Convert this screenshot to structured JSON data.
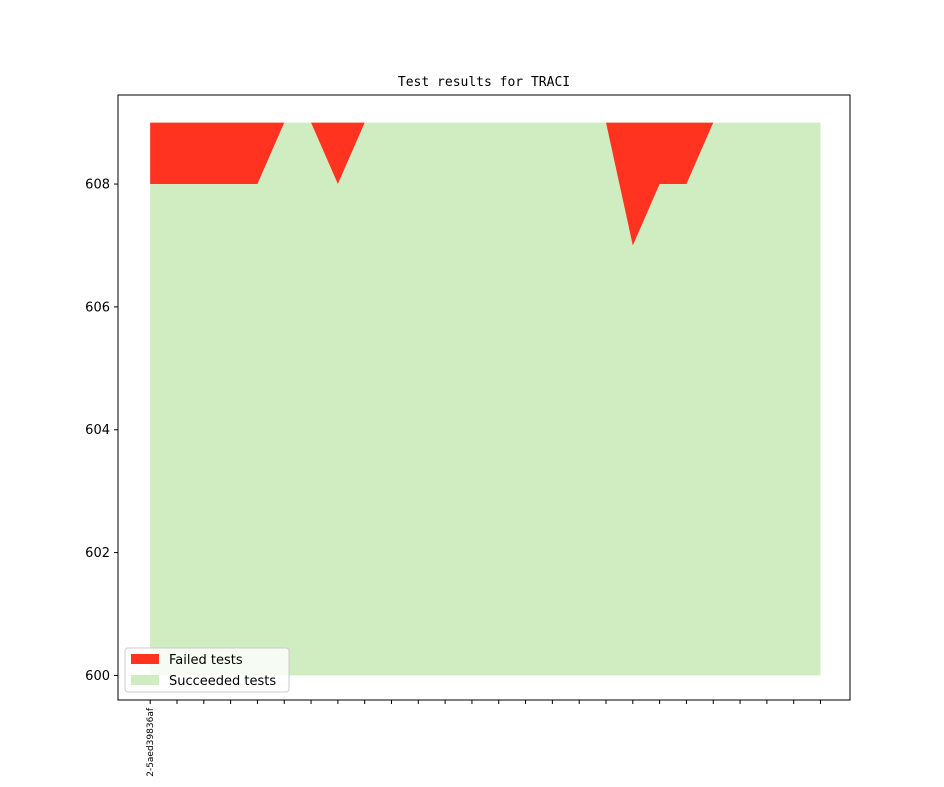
{
  "chart_data": {
    "type": "area",
    "title": "Test results for TRACI",
    "xlabel": "",
    "ylabel": "",
    "ylim": [
      599.6,
      609.45
    ],
    "x_index_range": [
      -1.2,
      26.1
    ],
    "yticks": [
      600,
      602,
      604,
      606,
      608
    ],
    "x_tick_count": 26,
    "x_tick_labels": [
      "2-5aed39836af"
    ],
    "series": [
      {
        "name": "Succeeded tests",
        "color": "#cfedc0",
        "values": [
          608,
          608,
          608,
          608,
          608,
          609,
          609,
          608,
          609,
          609,
          609,
          609,
          609,
          609,
          609,
          609,
          609,
          609,
          607,
          608,
          608,
          609,
          609,
          609,
          609,
          609
        ]
      },
      {
        "name": "Failed tests",
        "color": "#ff331f",
        "values": [
          1,
          1,
          1,
          1,
          1,
          0,
          0,
          1,
          0,
          0,
          0,
          0,
          0,
          0,
          0,
          0,
          0,
          0,
          2,
          1,
          1,
          0,
          0,
          0,
          0,
          0
        ]
      }
    ],
    "baseline": 600,
    "grid": false,
    "legend": {
      "position": "lower-left",
      "entries": [
        "Failed tests",
        "Succeeded tests"
      ]
    }
  }
}
